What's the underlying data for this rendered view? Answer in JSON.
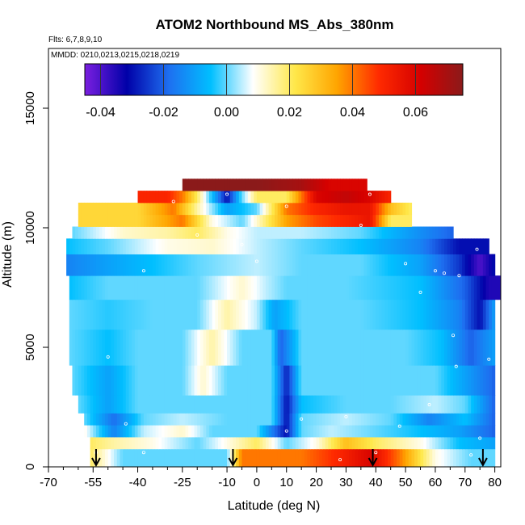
{
  "chart_data": {
    "type": "heatmap",
    "title": "ATOM2 Northbound MS_Abs_380nm",
    "subtitle_flights": "Flts: 6,7,8,9,10",
    "subtitle_dates": "MMDD: 0210,0213,0215,0218,0219",
    "xlabel": "Latitude (deg N)",
    "ylabel": "Altitude (m)",
    "xlim": [
      -70,
      82
    ],
    "ylim": [
      0,
      17500
    ],
    "x_ticks": [
      -70,
      -55,
      -40,
      -25,
      -10,
      0,
      10,
      20,
      30,
      40,
      50,
      60,
      70,
      80
    ],
    "x_tick_labels": [
      "-70",
      "-55",
      "-40",
      "-25",
      "-10",
      "0",
      "10",
      "20",
      "30",
      "40",
      "50",
      "60",
      "70",
      "80"
    ],
    "x_minor_ticks": [
      -65,
      -60,
      -50,
      -45,
      -35,
      -30,
      -20,
      -15,
      -5,
      5,
      15,
      25,
      35,
      45,
      55,
      65,
      75
    ],
    "y_ticks": [
      0,
      5000,
      10000,
      15000
    ],
    "y_tick_labels": [
      "0",
      "5000",
      "10000",
      "15000"
    ],
    "colorbar": {
      "range": [
        -0.045,
        0.075
      ],
      "ticks": [
        -0.04,
        -0.02,
        0.0,
        0.02,
        0.04,
        0.06
      ],
      "tick_labels": [
        "-0.04",
        "-0.02",
        "0.00",
        "0.02",
        "0.04",
        "0.06"
      ],
      "colors": [
        "#7b1fe0",
        "#0000a8",
        "#1e6ff0",
        "#00bfff",
        "#ffffff",
        "#ffe84a",
        "#ffa500",
        "#ff2a00",
        "#d40000",
        "#8b1a1a"
      ]
    },
    "arrow_latitudes": [
      -54,
      -8,
      39,
      76
    ],
    "altitude_bins": [
      {
        "alt": 500,
        "lat_range": [
          -56,
          80
        ],
        "anchors": [
          [
            -56,
            0.02
          ],
          [
            -45,
            0.0
          ],
          [
            -30,
            0.0
          ],
          [
            -10,
            0.0
          ],
          [
            -5,
            0.04
          ],
          [
            15,
            0.04
          ],
          [
            28,
            0.05
          ],
          [
            38,
            0.06
          ],
          [
            48,
            0.04
          ],
          [
            60,
            0.01
          ],
          [
            72,
            0.0
          ],
          [
            80,
            0.0
          ]
        ]
      },
      {
        "alt": 1000,
        "lat_range": [
          -56,
          80
        ],
        "anchors": [
          [
            -56,
            0.02
          ],
          [
            -48,
            0.015
          ],
          [
            -35,
            0.01
          ],
          [
            -20,
            0.0
          ],
          [
            0,
            0.02
          ],
          [
            10,
            0.0
          ],
          [
            20,
            0.01
          ],
          [
            30,
            0.03
          ],
          [
            40,
            0.02
          ],
          [
            55,
            0.01
          ],
          [
            68,
            -0.005
          ],
          [
            80,
            -0.01
          ]
        ]
      },
      {
        "alt": 1500,
        "lat_range": [
          -58,
          80
        ],
        "anchors": [
          [
            -58,
            0.01
          ],
          [
            -48,
            -0.015
          ],
          [
            -38,
            0.005
          ],
          [
            -25,
            0.012
          ],
          [
            -15,
            0.0
          ],
          [
            0,
            0.0
          ],
          [
            10,
            -0.03
          ],
          [
            15,
            0.0
          ],
          [
            25,
            0.005
          ],
          [
            40,
            0.0
          ],
          [
            55,
            -0.005
          ],
          [
            68,
            -0.01
          ],
          [
            80,
            -0.02
          ]
        ]
      },
      {
        "alt": 2000,
        "lat_range": [
          -58,
          80
        ],
        "anchors": [
          [
            -58,
            0.0
          ],
          [
            -48,
            -0.018
          ],
          [
            -38,
            0.0
          ],
          [
            -25,
            0.005
          ],
          [
            -10,
            0.0
          ],
          [
            5,
            0.0
          ],
          [
            10,
            -0.03
          ],
          [
            15,
            0.0
          ],
          [
            30,
            0.005
          ],
          [
            45,
            0.0
          ],
          [
            58,
            -0.015
          ],
          [
            70,
            -0.005
          ],
          [
            80,
            -0.02
          ]
        ]
      },
      {
        "alt": 2500,
        "lat_range": [
          -60,
          80
        ],
        "anchors": [
          [
            -60,
            0.0
          ],
          [
            -50,
            -0.01
          ],
          [
            -40,
            0.0
          ],
          [
            -28,
            0.0
          ],
          [
            -15,
            0.0
          ],
          [
            5,
            0.0
          ],
          [
            10,
            -0.03
          ],
          [
            15,
            -0.005
          ],
          [
            30,
            0.0
          ],
          [
            45,
            0.0
          ],
          [
            60,
            0.005
          ],
          [
            70,
            0.0
          ],
          [
            80,
            -0.02
          ]
        ]
      },
      {
        "alt": 3500,
        "lat_range": [
          -62,
          80
        ],
        "anchors": [
          [
            -62,
            0.0
          ],
          [
            -50,
            -0.01
          ],
          [
            -40,
            0.0
          ],
          [
            -25,
            0.0
          ],
          [
            -18,
            0.012
          ],
          [
            -10,
            0.0
          ],
          [
            5,
            0.0
          ],
          [
            10,
            -0.028
          ],
          [
            15,
            0.0
          ],
          [
            30,
            0.0
          ],
          [
            45,
            0.0
          ],
          [
            60,
            0.0
          ],
          [
            70,
            -0.01
          ],
          [
            80,
            -0.02
          ]
        ]
      },
      {
        "alt": 5000,
        "lat_range": [
          -63,
          80
        ],
        "anchors": [
          [
            -63,
            0.0
          ],
          [
            -50,
            -0.005
          ],
          [
            -40,
            0.0
          ],
          [
            -25,
            0.0
          ],
          [
            -15,
            0.015
          ],
          [
            -5,
            0.0
          ],
          [
            5,
            0.0
          ],
          [
            8,
            -0.02
          ],
          [
            15,
            0.0
          ],
          [
            30,
            0.0
          ],
          [
            50,
            0.0
          ],
          [
            62,
            -0.005
          ],
          [
            72,
            -0.02
          ],
          [
            80,
            -0.01
          ]
        ]
      },
      {
        "alt": 6500,
        "lat_range": [
          -63,
          80
        ],
        "anchors": [
          [
            -63,
            0.0
          ],
          [
            -50,
            -0.003
          ],
          [
            -35,
            0.0
          ],
          [
            -20,
            0.0
          ],
          [
            -10,
            0.015
          ],
          [
            0,
            0.005
          ],
          [
            6,
            -0.01
          ],
          [
            15,
            0.0
          ],
          [
            35,
            0.0
          ],
          [
            55,
            -0.005
          ],
          [
            68,
            -0.015
          ],
          [
            75,
            -0.03
          ],
          [
            80,
            -0.01
          ]
        ]
      },
      {
        "alt": 7500,
        "lat_range": [
          -63,
          82
        ],
        "anchors": [
          [
            -63,
            -0.005
          ],
          [
            -50,
            0.0
          ],
          [
            -35,
            0.0
          ],
          [
            -20,
            0.0
          ],
          [
            -5,
            0.012
          ],
          [
            3,
            0.005
          ],
          [
            10,
            0.0
          ],
          [
            30,
            0.0
          ],
          [
            55,
            -0.005
          ],
          [
            70,
            -0.02
          ],
          [
            78,
            -0.035
          ],
          [
            82,
            -0.035
          ]
        ]
      },
      {
        "alt": 8500,
        "lat_range": [
          -64,
          80
        ],
        "anchors": [
          [
            -64,
            -0.015
          ],
          [
            -50,
            -0.01
          ],
          [
            -35,
            -0.005
          ],
          [
            -20,
            0.0
          ],
          [
            0,
            0.005
          ],
          [
            15,
            0.0
          ],
          [
            35,
            0.0
          ],
          [
            55,
            -0.01
          ],
          [
            68,
            -0.025
          ],
          [
            75,
            -0.04
          ],
          [
            80,
            -0.03
          ]
        ]
      },
      {
        "alt": 9300,
        "lat_range": [
          -64,
          78
        ],
        "anchors": [
          [
            -64,
            -0.005
          ],
          [
            -50,
            0.0
          ],
          [
            -30,
            0.01
          ],
          [
            -15,
            0.012
          ],
          [
            0,
            0.005
          ],
          [
            15,
            0.0
          ],
          [
            35,
            -0.005
          ],
          [
            55,
            -0.015
          ],
          [
            68,
            -0.03
          ],
          [
            78,
            -0.03
          ]
        ]
      },
      {
        "alt": 9800,
        "lat_range": [
          -62,
          66
        ],
        "anchors": [
          [
            -62,
            0.0
          ],
          [
            -45,
            0.012
          ],
          [
            -30,
            0.015
          ],
          [
            -20,
            0.02
          ],
          [
            -10,
            0.01
          ],
          [
            0,
            0.005
          ],
          [
            15,
            0.005
          ],
          [
            35,
            0.0
          ],
          [
            50,
            -0.01
          ],
          [
            66,
            -0.02
          ]
        ]
      },
      {
        "alt": 10300,
        "lat_range": [
          -60,
          52
        ],
        "anchors": [
          [
            -60,
            0.025
          ],
          [
            -40,
            0.025
          ],
          [
            -25,
            0.04
          ],
          [
            -15,
            0.01
          ],
          [
            -5,
            0.0
          ],
          [
            10,
            0.035
          ],
          [
            20,
            0.045
          ],
          [
            30,
            0.05
          ],
          [
            38,
            0.055
          ],
          [
            45,
            0.02
          ],
          [
            52,
            0.02
          ]
        ]
      },
      {
        "alt": 10800,
        "lat_range": [
          -60,
          52
        ],
        "anchors": [
          [
            -60,
            0.025
          ],
          [
            -40,
            0.025
          ],
          [
            -28,
            0.04
          ],
          [
            -20,
            0.015
          ],
          [
            -10,
            -0.01
          ],
          [
            0,
            0.0
          ],
          [
            10,
            0.04
          ],
          [
            20,
            0.05
          ],
          [
            30,
            0.055
          ],
          [
            38,
            0.055
          ],
          [
            45,
            0.03
          ],
          [
            52,
            0.02
          ]
        ]
      },
      {
        "alt": 11300,
        "lat_range": [
          -40,
          45
        ],
        "anchors": [
          [
            -40,
            0.05
          ],
          [
            -30,
            0.05
          ],
          [
            -25,
            0.04
          ],
          [
            -20,
            0.02
          ],
          [
            -10,
            -0.03
          ],
          [
            -5,
            0.0
          ],
          [
            0,
            0.02
          ],
          [
            10,
            0.02
          ],
          [
            20,
            0.06
          ],
          [
            30,
            0.065
          ],
          [
            38,
            0.06
          ],
          [
            45,
            0.05
          ]
        ]
      },
      {
        "alt": 11800,
        "lat_range": [
          -25,
          37
        ],
        "anchors": [
          [
            -25,
            0.075
          ],
          [
            0,
            0.075
          ],
          [
            15,
            0.07
          ],
          [
            25,
            0.06
          ],
          [
            37,
            0.06
          ]
        ]
      }
    ],
    "sample_points": [
      [
        -54,
        600
      ],
      [
        -44,
        1800
      ],
      [
        -50,
        4600
      ],
      [
        -38,
        8200
      ],
      [
        -20,
        9700
      ],
      [
        -28,
        11100
      ],
      [
        -10,
        11400
      ],
      [
        0,
        8600
      ],
      [
        10,
        1500
      ],
      [
        15,
        2000
      ],
      [
        10,
        10900
      ],
      [
        35,
        10100
      ],
      [
        38,
        11400
      ],
      [
        28,
        300
      ],
      [
        40,
        600
      ],
      [
        30,
        2100
      ],
      [
        50,
        8500
      ],
      [
        55,
        7300
      ],
      [
        58,
        2600
      ],
      [
        60,
        8200
      ],
      [
        63,
        8100
      ],
      [
        66,
        5500
      ],
      [
        67,
        4200
      ],
      [
        68,
        8000
      ],
      [
        74,
        9100
      ],
      [
        75,
        1200
      ],
      [
        72,
        500
      ],
      [
        78,
        4500
      ],
      [
        48,
        1700
      ],
      [
        -5,
        9300
      ],
      [
        -38,
        600
      ]
    ]
  }
}
